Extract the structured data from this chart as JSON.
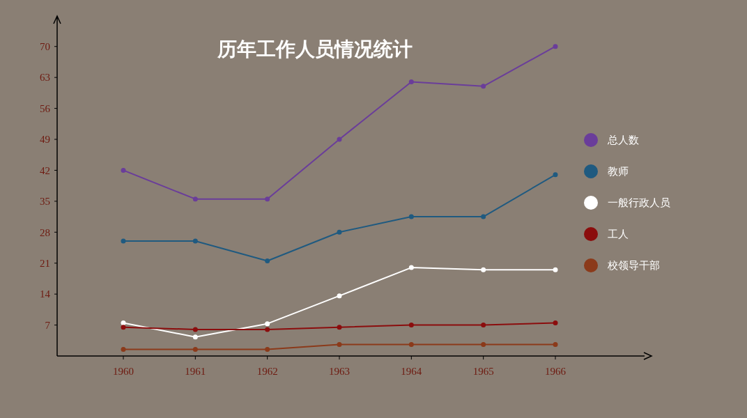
{
  "chart_data": {
    "type": "line",
    "title": "历年工作人员情况统计",
    "categories": [
      "1960",
      "1961",
      "1962",
      "1963",
      "1964",
      "1965",
      "1966"
    ],
    "series": [
      {
        "name": "总人数",
        "color": "#6a3d9a",
        "values": [
          42,
          35.5,
          35.5,
          49,
          62,
          61,
          70
        ]
      },
      {
        "name": "教师",
        "color": "#1f5a80",
        "values": [
          26,
          26,
          21.5,
          28,
          31.5,
          31.5,
          41
        ]
      },
      {
        "name": "一般行政人员",
        "color": "#ffffff",
        "values": [
          7.5,
          4.3,
          7.3,
          13.6,
          20,
          19.5,
          19.5
        ]
      },
      {
        "name": "工人",
        "color": "#8b0d0d",
        "values": [
          6.5,
          6,
          6,
          6.5,
          7,
          7,
          7.5
        ]
      },
      {
        "name": "校领导干部",
        "color": "#8b3a1a",
        "values": [
          1.5,
          1.5,
          1.5,
          2.6,
          2.6,
          2.6,
          2.6
        ]
      }
    ],
    "ylim": [
      0,
      75
    ],
    "yticks": [
      7,
      14,
      21,
      28,
      35,
      42,
      49,
      56,
      63,
      70
    ],
    "grid": false,
    "legend": "right",
    "marker": "circle",
    "line_style": "solid"
  }
}
